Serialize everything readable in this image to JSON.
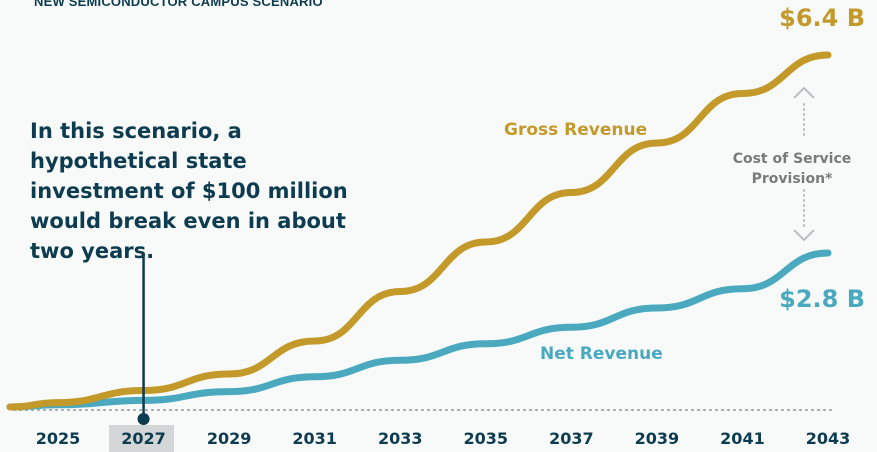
{
  "subtitle": "NEW SEMICONDUCTOR CAMPUS SCENARIO",
  "annotation": "In this scenario, a hypothetical state investment of $100 million would break even in about two years.",
  "colors": {
    "gross": "#c39a2a",
    "net": "#4aa9bf",
    "text": "#0d3b4f",
    "muted": "#7a7a7a"
  },
  "chart_data": {
    "type": "line",
    "x": [
      2024,
      2025,
      2027,
      2029,
      2031,
      2033,
      2035,
      2037,
      2039,
      2041,
      2043
    ],
    "xticks": [
      "2025",
      "2027",
      "2029",
      "2031",
      "2033",
      "2035",
      "2037",
      "2039",
      "2041",
      "2043"
    ],
    "highlight_tick": "2027",
    "series": [
      {
        "name": "Gross Revenue",
        "end_label": "$6.4 B",
        "values": [
          0.0,
          0.08,
          0.3,
          0.6,
          1.2,
          2.1,
          3.0,
          3.9,
          4.8,
          5.7,
          6.4
        ]
      },
      {
        "name": "Net Revenue",
        "end_label": "$2.8 B",
        "values": [
          0.0,
          0.04,
          0.12,
          0.28,
          0.55,
          0.85,
          1.15,
          1.45,
          1.8,
          2.15,
          2.8
        ]
      }
    ],
    "gap_label": "Cost of Service Provision*",
    "ylim": [
      0,
      7
    ]
  }
}
